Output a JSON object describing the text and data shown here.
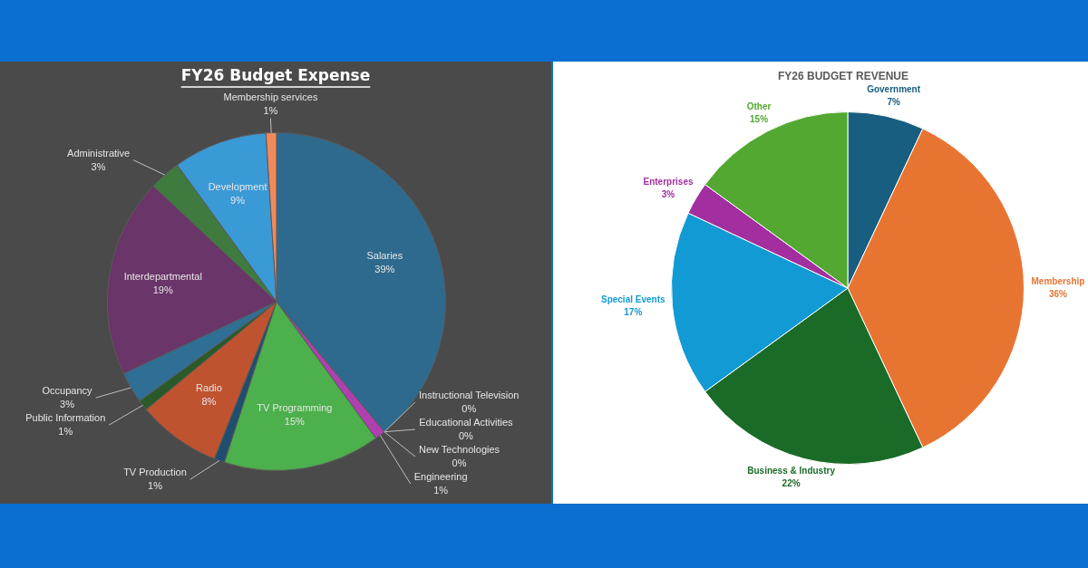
{
  "chart_data": [
    {
      "type": "pie",
      "title": "FY26 Budget Expense",
      "categories": [
        "Salaries",
        "Instructional Television",
        "Educational Activities",
        "New Technologies",
        "Engineering",
        "TV Programming",
        "TV Production",
        "Radio",
        "Public Information",
        "Occupancy",
        "Interdepartmental",
        "Administrative",
        "Development",
        "Membership services"
      ],
      "values": [
        39,
        0,
        0,
        0,
        1,
        15,
        1,
        8,
        1,
        3,
        19,
        3,
        9,
        1
      ],
      "value_labels": [
        "39%",
        "0%",
        "0%",
        "0%",
        "1%",
        "15%",
        "1%",
        "8%",
        "1%",
        "3%",
        "19%",
        "3%",
        "9%",
        "1%"
      ],
      "colors": [
        "#2e6a8e",
        "#e87a2c",
        "#2a7a3a",
        "#3ea0d8",
        "#b040b0",
        "#4cb04c",
        "#1f4e6e",
        "#c0532f",
        "#2a5a2a",
        "#2f6f95",
        "#6a3568",
        "#3f7a3f",
        "#3a9ad6",
        "#f08a5d"
      ]
    },
    {
      "type": "pie",
      "title": "FY26 BUDGET REVENUE",
      "categories": [
        "Government",
        "Membership",
        "Business & Industry",
        "Special Events",
        "Enterprises",
        "Other"
      ],
      "values": [
        7,
        36,
        22,
        17,
        3,
        15
      ],
      "value_labels": [
        "7%",
        "36%",
        "22%",
        "17%",
        "3%",
        "15%"
      ],
      "colors": [
        "#175e80",
        "#e87432",
        "#1b6b28",
        "#119ad4",
        "#a22ea0",
        "#52a831"
      ]
    }
  ]
}
